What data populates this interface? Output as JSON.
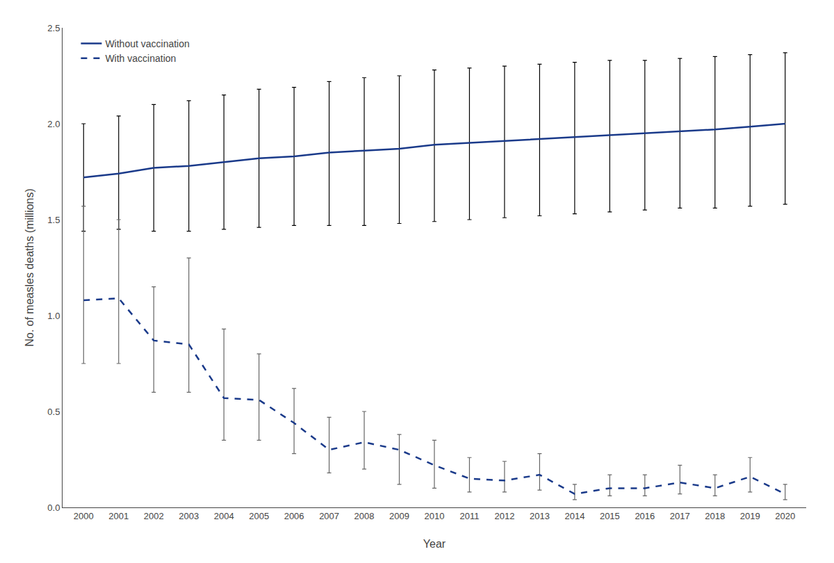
{
  "chart_data": {
    "type": "line",
    "x_title": "Year",
    "y_title": "No. of measles deaths (millions)",
    "x": [
      2000,
      2001,
      2002,
      2003,
      2004,
      2005,
      2006,
      2007,
      2008,
      2009,
      2010,
      2011,
      2012,
      2013,
      2014,
      2015,
      2016,
      2017,
      2018,
      2019,
      2020
    ],
    "series": [
      {
        "name": "Without vaccination",
        "color": "#1a3a8a",
        "line_style": "solid",
        "values": [
          1.72,
          1.74,
          1.77,
          1.78,
          1.8,
          1.82,
          1.83,
          1.85,
          1.86,
          1.87,
          1.89,
          1.9,
          1.91,
          1.92,
          1.93,
          1.94,
          1.95,
          1.96,
          1.97,
          1.985,
          2.0
        ],
        "error_bars": {
          "color": "#000000",
          "lower": [
            1.44,
            1.45,
            1.44,
            1.44,
            1.45,
            1.46,
            1.47,
            1.47,
            1.47,
            1.48,
            1.49,
            1.5,
            1.51,
            1.52,
            1.53,
            1.54,
            1.55,
            1.56,
            1.56,
            1.57,
            1.58
          ],
          "upper": [
            2.0,
            2.04,
            2.1,
            2.12,
            2.15,
            2.18,
            2.19,
            2.22,
            2.24,
            2.25,
            2.28,
            2.29,
            2.3,
            2.31,
            2.32,
            2.33,
            2.33,
            2.34,
            2.35,
            2.36,
            2.37
          ]
        }
      },
      {
        "name": "With vaccination",
        "color": "#1a3a8a",
        "line_style": "dashed",
        "values": [
          1.08,
          1.09,
          0.87,
          0.85,
          0.57,
          0.56,
          0.44,
          0.3,
          0.34,
          0.3,
          0.22,
          0.15,
          0.14,
          0.17,
          0.07,
          0.1,
          0.1,
          0.13,
          0.1,
          0.16,
          0.07
        ],
        "error_bars": {
          "color": "#666666",
          "lower": [
            0.75,
            0.75,
            0.6,
            0.6,
            0.35,
            0.35,
            0.28,
            0.18,
            0.2,
            0.12,
            0.1,
            0.08,
            0.08,
            0.09,
            0.04,
            0.06,
            0.06,
            0.07,
            0.06,
            0.08,
            0.04
          ],
          "upper": [
            1.57,
            1.5,
            1.15,
            1.3,
            0.93,
            0.8,
            0.62,
            0.47,
            0.5,
            0.38,
            0.35,
            0.26,
            0.24,
            0.28,
            0.12,
            0.17,
            0.17,
            0.22,
            0.17,
            0.26,
            0.12
          ]
        }
      }
    ],
    "xlim": [
      1999.4,
      2020.6
    ],
    "xticks": [
      2000,
      2001,
      2002,
      2003,
      2004,
      2005,
      2006,
      2007,
      2008,
      2009,
      2010,
      2011,
      2012,
      2013,
      2014,
      2015,
      2016,
      2017,
      2018,
      2019,
      2020
    ],
    "ylim": [
      0.0,
      2.5
    ],
    "yticks": [
      {
        "value": 0.0,
        "label": "0.0"
      },
      0.5,
      {
        "value": 1.0,
        "label": "1.0"
      },
      1.5,
      {
        "value": 2.0,
        "label": "2.0"
      },
      2.5
    ],
    "grid": false,
    "legend": "upper left"
  }
}
